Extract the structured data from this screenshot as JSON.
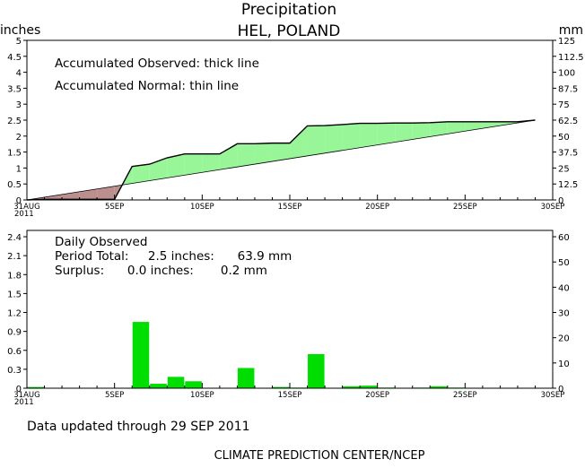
{
  "header": {
    "title": "Precipitation",
    "subtitle": "HEL, POLAND",
    "left_unit": "inches",
    "right_unit": "mm"
  },
  "footer": {
    "updated": "Data updated through 29 SEP 2011",
    "credit": "CLIMATE PREDICTION CENTER/NCEP"
  },
  "x_axis": {
    "ticks": [
      {
        "day": 0,
        "label": "31AUG",
        "label2": "2011"
      },
      {
        "day": 5,
        "label": "5SEP"
      },
      {
        "day": 10,
        "label": "10SEP"
      },
      {
        "day": 15,
        "label": "15SEP"
      },
      {
        "day": 20,
        "label": "20SEP"
      },
      {
        "day": 25,
        "label": "25SEP"
      },
      {
        "day": 30,
        "label": "30SEP"
      }
    ]
  },
  "chart_data": [
    {
      "type": "area",
      "notes": [
        "Accumulated Observed: thick line",
        "Accumulated Normal: thin line"
      ],
      "ylim_inches": [
        0,
        5
      ],
      "ylim_mm": [
        0,
        125
      ],
      "y_ticks_inches": [
        "0",
        "0.5",
        "1",
        "1.5",
        "2",
        "2.5",
        "3",
        "3.5",
        "4",
        "4.5",
        "5"
      ],
      "y_ticks_mm": [
        "0",
        "12.5",
        "25",
        "37.5",
        "50",
        "62.5",
        "75",
        "87.5",
        "100",
        "112.5",
        "125"
      ],
      "surplus_color": "#98f598",
      "deficit_color": "#bc8f8f",
      "series": [
        {
          "name": "Accumulated Observed",
          "x": [
            0,
            1,
            2,
            3,
            4,
            5,
            6,
            7,
            8,
            9,
            10,
            11,
            12,
            13,
            14,
            15,
            16,
            17,
            18,
            19,
            20,
            21,
            22,
            23,
            24,
            25,
            26,
            27,
            28,
            29
          ],
          "values": [
            0,
            0.02,
            0.02,
            0.02,
            0.02,
            0.02,
            1.05,
            1.12,
            1.32,
            1.44,
            1.44,
            1.44,
            1.76,
            1.76,
            1.78,
            1.78,
            2.32,
            2.33,
            2.36,
            2.4,
            2.4,
            2.41,
            2.41,
            2.42,
            2.45,
            2.45,
            2.45,
            2.45,
            2.45,
            2.5
          ]
        },
        {
          "name": "Accumulated Normal",
          "x": [
            0,
            29
          ],
          "values": [
            0,
            2.5
          ]
        }
      ]
    },
    {
      "type": "bar",
      "notes": [
        "Daily Observed",
        "Period Total:     2.5 inches:      63.9 mm",
        "Surplus:      0.0 inches:       0.2 mm"
      ],
      "ylim_inches": [
        0,
        2.5
      ],
      "ylim_mm": [
        0,
        62.5
      ],
      "y_ticks_inches": [
        "0",
        "0.3",
        "0.6",
        "0.9",
        "1.2",
        "1.5",
        "1.8",
        "2.1",
        "2.4"
      ],
      "y_ticks_mm": [
        "0",
        "10",
        "20",
        "30",
        "40",
        "50",
        "60"
      ],
      "bar_color": "#00dd00",
      "x": [
        0,
        6,
        7,
        8,
        9,
        12,
        14,
        15,
        16,
        18,
        19,
        20,
        22,
        23,
        24
      ],
      "values": [
        0.02,
        1.05,
        0.07,
        0.18,
        0.11,
        0.32,
        0.02,
        0.01,
        0.54,
        0.03,
        0.04,
        0.01,
        0.01,
        0.03,
        0.01
      ]
    }
  ]
}
